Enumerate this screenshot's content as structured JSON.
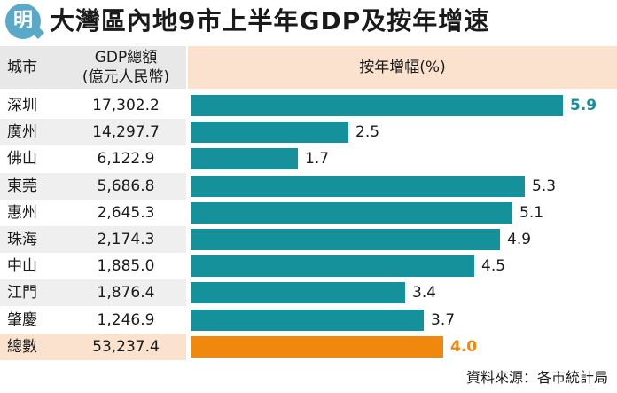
{
  "header": {
    "logo": "明",
    "title": "大灣區內地9市上半年GDP及按年增速"
  },
  "table": {
    "col_city": "城市",
    "col_gdp_line1": "GDP總額",
    "col_gdp_line2": "(億元人民幣)",
    "col_growth": "按年增幅(%)"
  },
  "source": "資料來源：各市統計局",
  "colors": {
    "bar": "#14919b",
    "highlight_text": "#14919b",
    "total_bar": "#f0880e",
    "total_text": "#f0880e"
  },
  "chart_data": {
    "type": "bar",
    "title": "大灣區內地9市上半年GDP及按年增速",
    "categories": [
      "深圳",
      "廣州",
      "佛山",
      "東莞",
      "惠州",
      "珠海",
      "中山",
      "江門",
      "肇慶",
      "總數"
    ],
    "gdp": [
      "17,302.2",
      "14,297.7",
      "6,122.9",
      "5,686.8",
      "2,645.3",
      "2,174.3",
      "1,885.0",
      "1,876.4",
      "1,246.9",
      "53,237.4"
    ],
    "values": [
      5.9,
      2.5,
      1.7,
      5.3,
      5.1,
      4.9,
      4.5,
      3.4,
      3.7,
      4.0
    ],
    "value_labels": [
      "5.9",
      "2.5",
      "1.7",
      "5.3",
      "5.1",
      "4.9",
      "4.5",
      "3.4",
      "3.7",
      "4.0"
    ],
    "xlabel": "按年增幅(%)",
    "xlim": [
      0,
      5.9
    ]
  }
}
